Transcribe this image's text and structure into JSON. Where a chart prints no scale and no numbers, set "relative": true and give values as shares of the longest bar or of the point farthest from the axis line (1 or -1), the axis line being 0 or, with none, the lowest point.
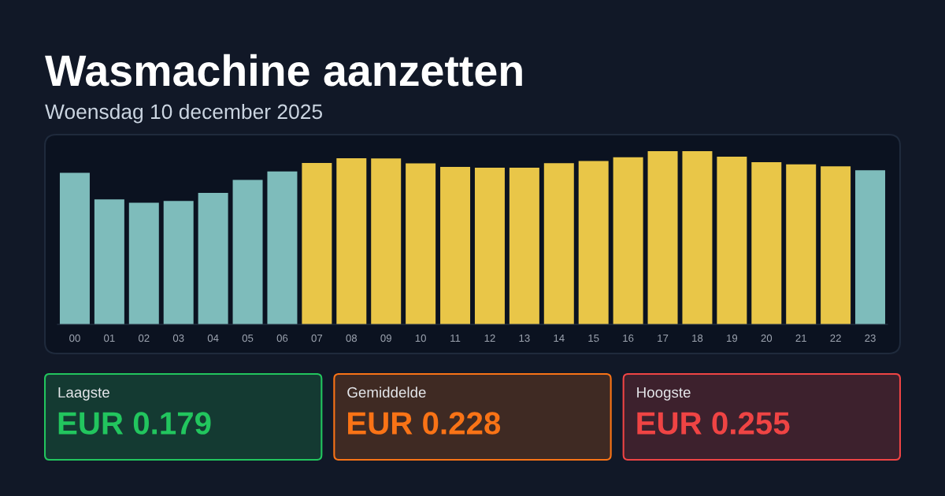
{
  "chart_data": [
    {
      "type": "bar",
      "title": "Wasmachine aanzetten",
      "subtitle": "Woensdag 10 december 2025",
      "relative": true,
      "categories": [
        "00",
        "01",
        "02",
        "03",
        "04",
        "05",
        "06",
        "07",
        "08",
        "09",
        "10",
        "11",
        "12",
        "13",
        "14",
        "15",
        "16",
        "17",
        "18",
        "19",
        "20",
        "21",
        "22",
        "23"
      ],
      "values": [
        0.875,
        0.722,
        0.702,
        0.712,
        0.759,
        0.834,
        0.883,
        0.932,
        0.959,
        0.958,
        0.93,
        0.909,
        0.905,
        0.905,
        0.931,
        0.943,
        0.965,
        1.0,
        1.0,
        0.968,
        0.936,
        0.924,
        0.912,
        0.89
      ],
      "colors": [
        "#7ebcbb",
        "#7ebcbb",
        "#7ebcbb",
        "#7ebcbb",
        "#7ebcbb",
        "#7ebcbb",
        "#7ebcbb",
        "#e9c648",
        "#e9c648",
        "#e9c648",
        "#e9c648",
        "#e9c648",
        "#e9c648",
        "#e9c648",
        "#e9c648",
        "#e9c648",
        "#e9c648",
        "#e9c648",
        "#e9c648",
        "#e9c648",
        "#e9c648",
        "#e9c648",
        "#e9c648",
        "#7ebcbb"
      ]
    },
    {
      "type": "other",
      "categories": [
        "Laagste",
        "Gemiddelde",
        "Hoogste"
      ],
      "values": [
        0.179,
        0.228,
        0.255
      ],
      "value_labels": [
        "EUR 0.179",
        "EUR 0.228",
        "EUR 0.255"
      ],
      "colors": [
        "#22c55e",
        "#f97316",
        "#ef4444"
      ]
    }
  ]
}
